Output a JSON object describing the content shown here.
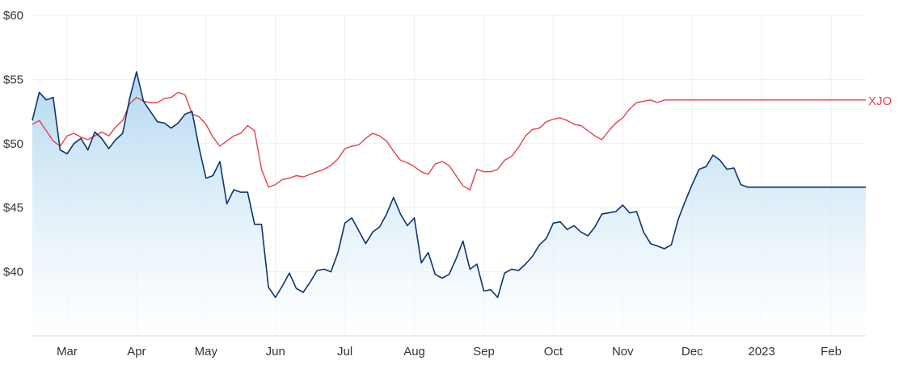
{
  "chart_data": {
    "type": "line",
    "y_axis": {
      "ticks": [
        "$60",
        "$55",
        "$50",
        "$45",
        "$40"
      ],
      "tick_values": [
        60,
        55,
        50,
        45,
        40
      ],
      "ylim": [
        35,
        60
      ]
    },
    "x_axis": {
      "months": [
        "Mar",
        "Apr",
        "May",
        "Jun",
        "Jul",
        "Aug",
        "Sep",
        "Oct",
        "Nov",
        "Dec",
        "2023",
        "Feb"
      ],
      "month_index_range": [
        0,
        12
      ],
      "month_tick_positions": [
        0.5,
        1.5,
        2.5,
        3.5,
        4.5,
        5.5,
        6.5,
        7.5,
        8.5,
        9.5,
        10.5,
        11.5
      ]
    },
    "grid": true,
    "legend": "none",
    "colors": {
      "stock": "#0d3470",
      "stock_fill_top": "#aed6ef",
      "stock_fill_bottom": "#ffffff",
      "xjo": "#e4424b"
    },
    "series": [
      {
        "key": "stock",
        "x": [
          0.0,
          0.1,
          0.2,
          0.3,
          0.4,
          0.5,
          0.6,
          0.7,
          0.8,
          0.9,
          1.0,
          1.1,
          1.2,
          1.3,
          1.4,
          1.5,
          1.6,
          1.7,
          1.8,
          1.9,
          2.0,
          2.1,
          2.2,
          2.3,
          2.4,
          2.5,
          2.6,
          2.7,
          2.8,
          2.9,
          3.0,
          3.1,
          3.2,
          3.3,
          3.4,
          3.5,
          3.6,
          3.7,
          3.8,
          3.9,
          4.0,
          4.1,
          4.2,
          4.3,
          4.4,
          4.5,
          4.6,
          4.7,
          4.8,
          4.9,
          5.0,
          5.1,
          5.2,
          5.3,
          5.4,
          5.5,
          5.6,
          5.7,
          5.8,
          5.9,
          6.0,
          6.1,
          6.2,
          6.3,
          6.4,
          6.5,
          6.6,
          6.7,
          6.8,
          6.9,
          7.0,
          7.1,
          7.2,
          7.3,
          7.4,
          7.5,
          7.6,
          7.7,
          7.8,
          7.9,
          8.0,
          8.1,
          8.2,
          8.3,
          8.4,
          8.5,
          8.6,
          8.7,
          8.8,
          8.9,
          9.0,
          9.1,
          9.2,
          9.3,
          9.4,
          9.5,
          9.6,
          9.7,
          9.8,
          9.9,
          10.0,
          10.1,
          10.2,
          10.3,
          10.4,
          10.5,
          10.6,
          10.7,
          10.8,
          10.9,
          11.0,
          11.1,
          11.2,
          11.3,
          11.4,
          11.5,
          11.6,
          11.7,
          11.8,
          11.9,
          12.0
        ],
        "values": [
          51.8,
          54.0,
          53.4,
          53.6,
          49.5,
          49.2,
          50.0,
          50.4,
          49.5,
          50.9,
          50.4,
          49.6,
          50.3,
          50.8,
          53.5,
          55.6,
          53.3,
          52.5,
          51.7,
          51.6,
          51.2,
          51.6,
          52.3,
          52.5,
          49.7,
          47.3,
          47.5,
          48.6,
          45.3,
          46.4,
          46.2,
          46.2,
          43.7,
          43.7,
          38.8,
          38.0,
          38.9,
          39.9,
          38.7,
          38.4,
          39.2,
          40.1,
          40.2,
          40.0,
          41.5,
          43.8,
          44.2,
          43.2,
          42.2,
          43.1,
          43.5,
          44.5,
          45.8,
          44.5,
          43.6,
          44.2,
          40.7,
          41.5,
          39.8,
          39.5,
          39.8,
          41.0,
          42.4,
          40.2,
          40.6,
          38.5,
          38.6,
          38.0,
          39.9,
          40.2,
          40.1,
          40.6,
          41.2,
          42.1,
          42.6,
          43.8,
          43.9,
          43.3,
          43.6,
          43.1,
          42.8,
          43.5,
          44.5,
          44.6,
          44.7,
          45.2,
          44.6,
          44.7,
          43.1,
          42.2,
          42.0,
          41.8,
          42.1,
          44.1,
          45.5,
          46.8,
          48.0,
          48.2,
          49.1,
          48.7,
          48.0,
          48.1,
          46.8,
          46.6,
          46.6,
          46.6,
          46.6,
          46.6,
          46.6,
          46.6,
          46.6,
          46.6,
          46.6,
          46.6,
          46.6,
          46.6,
          46.6,
          46.6,
          46.6,
          46.6,
          46.6
        ]
      },
      {
        "key": "xjo",
        "name": "XJO",
        "x": [
          0.0,
          0.1,
          0.2,
          0.3,
          0.4,
          0.5,
          0.6,
          0.7,
          0.8,
          0.9,
          1.0,
          1.1,
          1.2,
          1.3,
          1.4,
          1.5,
          1.6,
          1.7,
          1.8,
          1.9,
          2.0,
          2.1,
          2.2,
          2.3,
          2.4,
          2.5,
          2.6,
          2.7,
          2.8,
          2.9,
          3.0,
          3.1,
          3.2,
          3.3,
          3.4,
          3.5,
          3.6,
          3.7,
          3.8,
          3.9,
          4.0,
          4.1,
          4.2,
          4.3,
          4.4,
          4.5,
          4.6,
          4.7,
          4.8,
          4.9,
          5.0,
          5.1,
          5.2,
          5.3,
          5.4,
          5.5,
          5.6,
          5.7,
          5.8,
          5.9,
          6.0,
          6.1,
          6.2,
          6.3,
          6.4,
          6.5,
          6.6,
          6.7,
          6.8,
          6.9,
          7.0,
          7.1,
          7.2,
          7.3,
          7.4,
          7.5,
          7.6,
          7.7,
          7.8,
          7.9,
          8.0,
          8.1,
          8.2,
          8.3,
          8.4,
          8.5,
          8.6,
          8.7,
          8.8,
          8.9,
          9.0,
          9.1,
          9.2,
          9.3,
          9.4,
          9.5,
          9.6,
          9.7,
          9.8,
          9.9,
          10.0,
          10.1,
          10.2,
          10.3,
          10.4,
          10.5,
          10.6,
          10.7,
          10.8,
          10.9,
          11.0,
          11.1,
          11.2,
          11.3,
          11.4,
          11.5,
          11.6,
          11.7,
          11.8,
          11.9,
          12.0
        ],
        "values": [
          51.5,
          51.8,
          51.0,
          50.2,
          49.8,
          50.6,
          50.8,
          50.5,
          50.3,
          50.6,
          50.9,
          50.6,
          51.3,
          51.8,
          53.1,
          53.6,
          53.3,
          53.2,
          53.2,
          53.5,
          53.6,
          54.0,
          53.8,
          52.3,
          52.1,
          51.5,
          50.5,
          49.8,
          50.2,
          50.6,
          50.8,
          51.4,
          51.0,
          48.0,
          46.6,
          46.8,
          47.2,
          47.3,
          47.5,
          47.4,
          47.6,
          47.8,
          48.0,
          48.3,
          48.8,
          49.6,
          49.8,
          49.9,
          50.4,
          50.8,
          50.6,
          50.2,
          49.4,
          48.7,
          48.5,
          48.2,
          47.8,
          47.6,
          48.4,
          48.6,
          48.3,
          47.5,
          46.7,
          46.4,
          48.0,
          47.8,
          47.8,
          48.0,
          48.7,
          49.0,
          49.7,
          50.6,
          51.1,
          51.2,
          51.7,
          51.9,
          52.0,
          51.8,
          51.5,
          51.4,
          51.0,
          50.6,
          50.3,
          51.0,
          51.6,
          52.0,
          52.7,
          53.2,
          53.3,
          53.4,
          53.2,
          53.4,
          53.4,
          53.4,
          53.4,
          53.4,
          53.4,
          53.4,
          53.4,
          53.4,
          53.4,
          53.4,
          53.4,
          53.4,
          53.4,
          53.4,
          53.4,
          53.4,
          53.4,
          53.4,
          53.4,
          53.4,
          53.4,
          53.4,
          53.4,
          53.4,
          53.4,
          53.4,
          53.4,
          53.4,
          53.4
        ]
      }
    ]
  }
}
